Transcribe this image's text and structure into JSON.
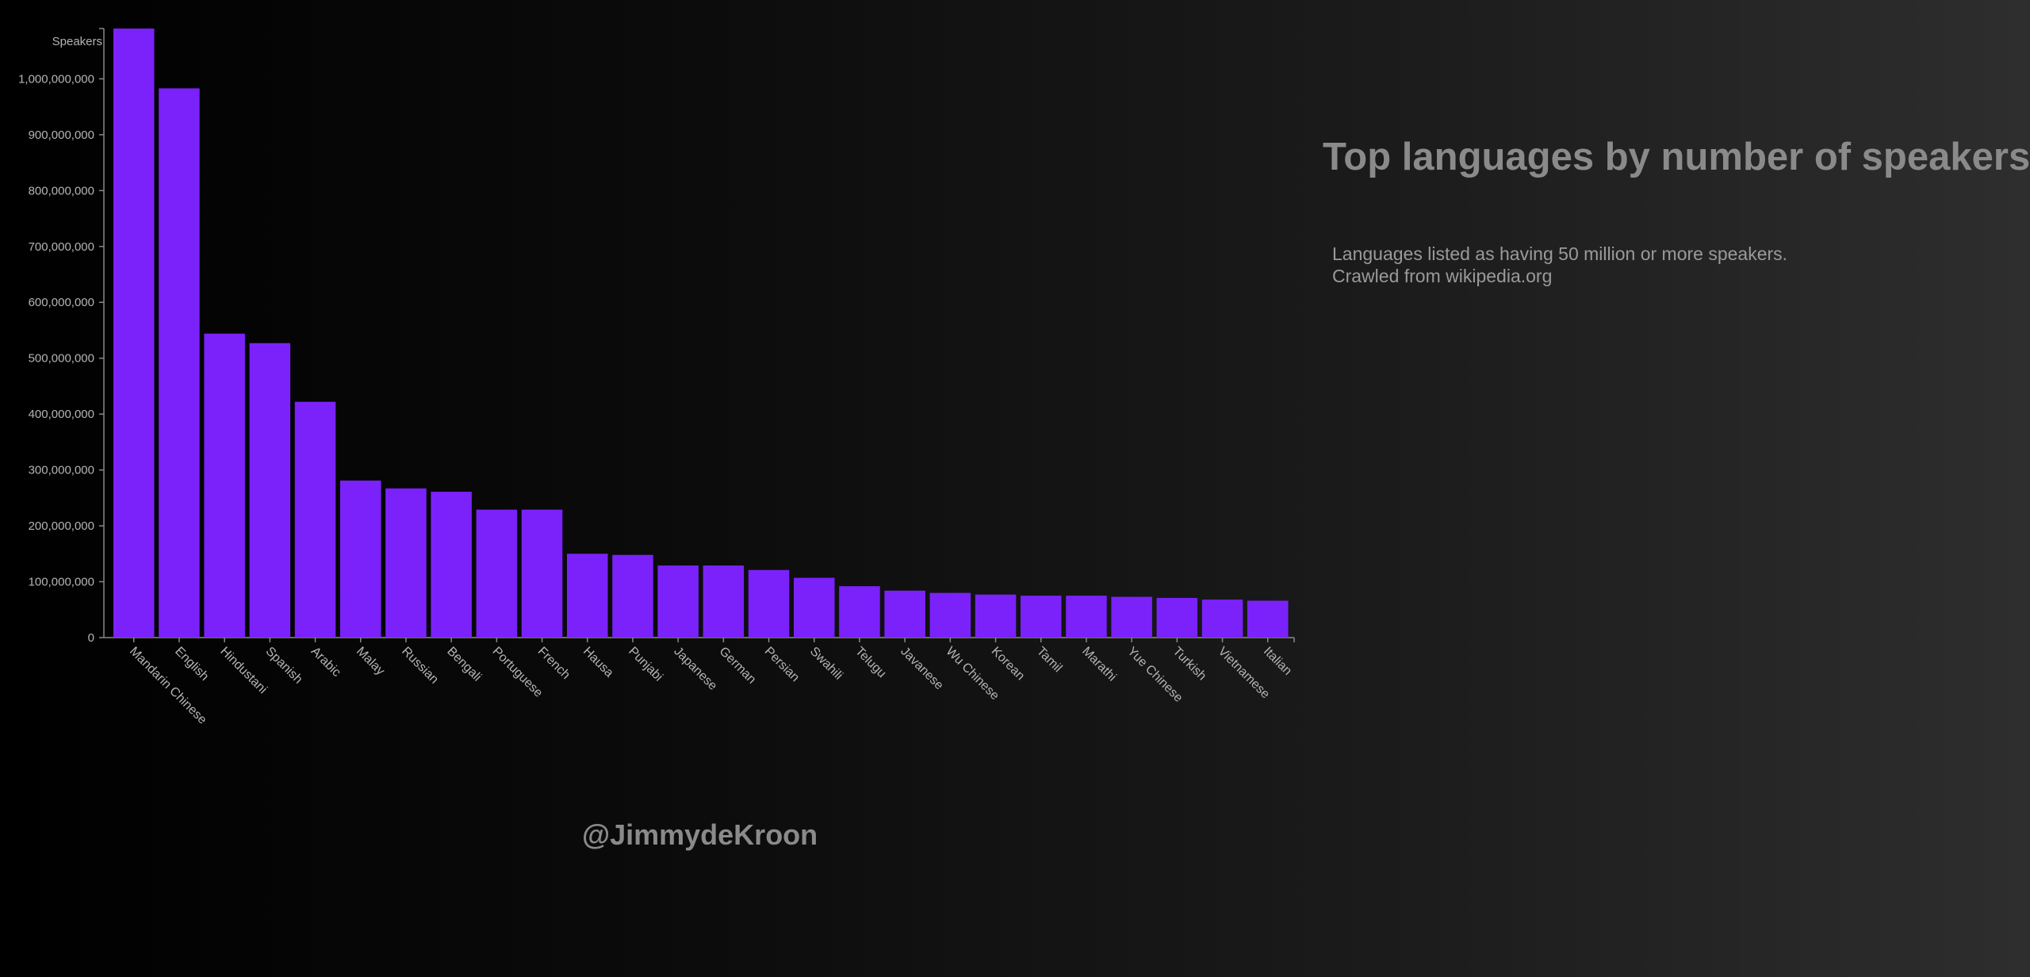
{
  "page": {
    "title": "Top languages by number of speakers",
    "subtitle_line1": "Languages listed as having 50 million or more speakers.",
    "subtitle_line2": "Crawled from wikipedia.org",
    "credit": "@JimmydeKroon"
  },
  "colors": {
    "bar": "#7b22fb",
    "axis": "#888888",
    "tick_text": "#b4b4b4"
  },
  "chart_data": {
    "type": "bar",
    "ylabel": "Speakers",
    "ylim": [
      0,
      1090000000
    ],
    "yticks": [
      0,
      100000000,
      200000000,
      300000000,
      400000000,
      500000000,
      600000000,
      700000000,
      800000000,
      900000000,
      1000000000
    ],
    "ytick_labels": [
      "0",
      "100,000,000",
      "200,000,000",
      "300,000,000",
      "400,000,000",
      "500,000,000",
      "600,000,000",
      "700,000,000",
      "800,000,000",
      "900,000,000",
      "1,000,000,000"
    ],
    "categories": [
      "Mandarin Chinese",
      "English",
      "Hindustani",
      "Spanish",
      "Arabic",
      "Malay",
      "Russian",
      "Bengali",
      "Portuguese",
      "French",
      "Hausa",
      "Punjabi",
      "Japanese",
      "German",
      "Persian",
      "Swahili",
      "Telugu",
      "Javanese",
      "Wu Chinese",
      "Korean",
      "Tamil",
      "Marathi",
      "Yue Chinese",
      "Turkish",
      "Vietnamese",
      "Italian"
    ],
    "values": [
      1090000000,
      983000000,
      544000000,
      527000000,
      422000000,
      281000000,
      267000000,
      261000000,
      229000000,
      229000000,
      150000000,
      148000000,
      129000000,
      129000000,
      121000000,
      107000000,
      92000000,
      84000000,
      80000000,
      77000000,
      75000000,
      75000000,
      73000000,
      71000000,
      68000000,
      66000000
    ],
    "grid": false,
    "legend": "none"
  }
}
